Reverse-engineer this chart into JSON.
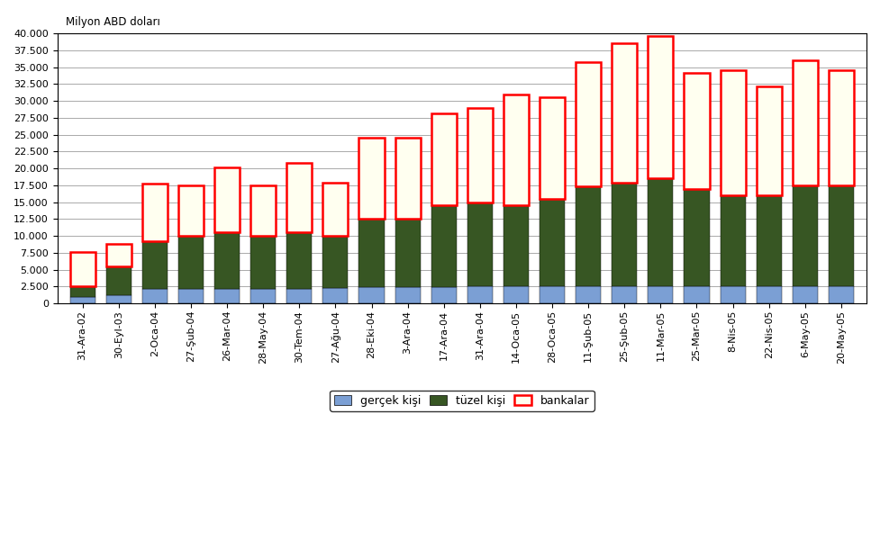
{
  "categories": [
    "31-Ara-02",
    "30-Eyl-03",
    "2-Oca-04",
    "27-Şub-04",
    "26-Mar-04",
    "28-May-04",
    "30-Tem-04",
    "27-Ağu-04",
    "28-Eki-04",
    "3-Ara-04",
    "17-Ara-04",
    "31-Ara-04",
    "14-Oca-05",
    "28-Oca-05",
    "11-Şub-05",
    "25-Şub-05",
    "11-Mar-05",
    "25-Mar-05",
    "8-Nis-05",
    "22-Nis-05",
    "6-May-05",
    "20-May-05"
  ],
  "gercek_kisi": [
    900,
    1200,
    2200,
    2200,
    2200,
    2200,
    2200,
    2300,
    2400,
    2400,
    2400,
    2500,
    2500,
    2500,
    2500,
    2600,
    2600,
    2500,
    2500,
    2500,
    2500,
    2500
  ],
  "tuzel_kisi": [
    1600,
    4300,
    7000,
    7800,
    8300,
    7800,
    8300,
    7700,
    10200,
    10100,
    12100,
    12500,
    12000,
    13000,
    14800,
    15300,
    16000,
    14500,
    13500,
    13500,
    15000,
    15000
  ],
  "bankalar": [
    5100,
    3300,
    8500,
    7500,
    9700,
    7500,
    10300,
    7900,
    11900,
    12000,
    13600,
    14000,
    16500,
    15000,
    18500,
    20600,
    21000,
    17200,
    18500,
    16200,
    18500,
    17000
  ],
  "colors": {
    "gercek_kisi": "#7B9FD4",
    "tuzel_kisi": "#375623",
    "bankalar_face": "#FFFFF0",
    "bankalar_edge": "#FF0000"
  },
  "legend_labels": [
    "gerçek kişi",
    "tüzel kişi",
    "bankalar"
  ],
  "ylabel": "Milyon ABD doları",
  "ylim": [
    0,
    40000
  ],
  "yticks": [
    0,
    2500,
    5000,
    7500,
    10000,
    12500,
    15000,
    17500,
    20000,
    22500,
    25000,
    27500,
    30000,
    32500,
    35000,
    37500,
    40000
  ],
  "background_color": "#FFFFFF",
  "bar_width": 0.7,
  "bar_edge_color": "#000000",
  "bar_edge_width": 0.3
}
